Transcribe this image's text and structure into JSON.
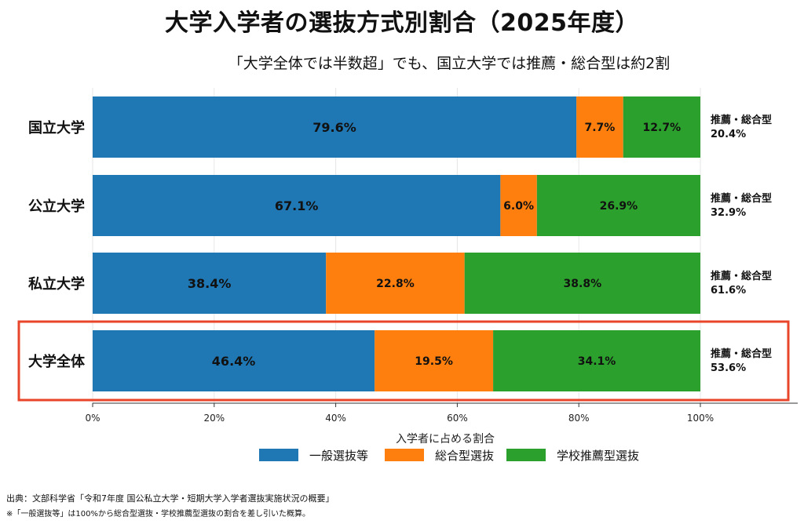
{
  "title": "大学入学者の選抜方式別割合（2025年度）",
  "subtitle": "「大学全体では半数超」でも、国立大学では推薦・総合型は約2割",
  "chart_data": {
    "type": "bar",
    "orientation": "horizontal",
    "stacked": true,
    "categories": [
      "国立大学",
      "公立大学",
      "私立大学",
      "大学全体"
    ],
    "series": [
      {
        "name": "一般選抜等",
        "values": [
          79.6,
          67.1,
          38.4,
          46.4
        ],
        "labels": [
          "79.6%",
          "67.1%",
          "38.4%",
          "46.4%"
        ],
        "color": "#1f77b4"
      },
      {
        "name": "総合型選抜",
        "values": [
          7.7,
          6.0,
          22.8,
          19.5
        ],
        "labels": [
          "7.7%",
          "6.0%",
          "22.8%",
          "19.5%"
        ],
        "color": "#ff7f0e"
      },
      {
        "name": "学校推薦型選抜",
        "values": [
          12.7,
          26.9,
          38.8,
          34.1
        ],
        "labels": [
          "12.7%",
          "26.9%",
          "38.8%",
          "34.1%"
        ],
        "color": "#2ca02c"
      }
    ],
    "side_labels": [
      {
        "label": "推薦・総合型",
        "value": "20.4%"
      },
      {
        "label": "推薦・総合型",
        "value": "32.9%"
      },
      {
        "label": "推薦・総合型",
        "value": "61.6%"
      },
      {
        "label": "推薦・総合型",
        "value": "53.6%"
      }
    ],
    "highlight_category": "大学全体",
    "highlight_color": "#e8452a",
    "xlabel": "入学者に占める割合",
    "xlim": [
      0,
      100
    ],
    "xticks": [
      "0%",
      "20%",
      "40%",
      "60%",
      "80%",
      "100%"
    ],
    "legend_position": "bottom-center"
  },
  "footnotes": {
    "source": "出典：文部科学省「令和7年度 国公私立大学・短期大学入学者選抜実施状況の概要」",
    "note": "※「一般選抜等」は100%から総合型選抜・学校推薦型選抜の割合を差し引いた概算。"
  }
}
